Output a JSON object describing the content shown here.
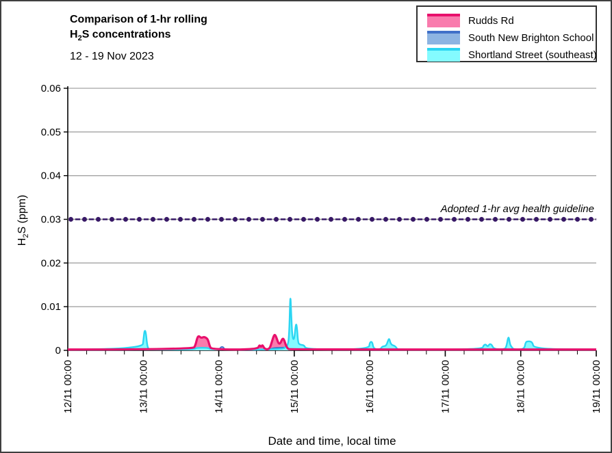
{
  "title": {
    "line1": "Comparison of 1-hr rolling",
    "line2_h": "H",
    "line2_sub": "2",
    "line2_rest": "S concentrations",
    "subtitle": "12 - 19 Nov 2023"
  },
  "legend": {
    "items": [
      {
        "label": "Rudds Rd"
      },
      {
        "label": "South New Brighton School"
      },
      {
        "label": "Shortland Street (southeast)"
      }
    ]
  },
  "axes": {
    "y_title_h": "H",
    "y_title_sub": "2",
    "y_title_rest": "S (ppm)",
    "x_title": "Date and time, local time"
  },
  "annotation": {
    "text": "Adopted 1-hr avg health guideline"
  },
  "colors": {
    "gridline": "#a3a3a3",
    "axis": "#000000",
    "guideline_purple": "#371866",
    "guideline_gray": "#909090"
  },
  "chart_data": {
    "type": "area",
    "title": "Comparison of 1-hr rolling H2S concentrations",
    "subtitle": "12 - 19 Nov 2023",
    "xlabel": "Date and time, local time",
    "ylabel": "H2S (ppm)",
    "x_unit": "hours since 12/11/2023 00:00 local time",
    "xlim": [
      0,
      168
    ],
    "ylim": [
      0,
      0.06
    ],
    "grid": "horizontal",
    "legend_position": "top-right",
    "y_ticks": [
      {
        "value": 0,
        "label": "0"
      },
      {
        "value": 0.01,
        "label": "0.01"
      },
      {
        "value": 0.02,
        "label": "0.02"
      },
      {
        "value": 0.03,
        "label": "0.03"
      },
      {
        "value": 0.04,
        "label": "0.04"
      },
      {
        "value": 0.05,
        "label": "0.05"
      },
      {
        "value": 0.06,
        "label": "0.06"
      }
    ],
    "x_ticks": [
      {
        "hour": 0,
        "label": "12/11 00:00"
      },
      {
        "hour": 24,
        "label": "13/11 00:00"
      },
      {
        "hour": 48,
        "label": "14/11 00:00"
      },
      {
        "hour": 72,
        "label": "15/11 00:00"
      },
      {
        "hour": 96,
        "label": "16/11 00:00"
      },
      {
        "hour": 120,
        "label": "17/11 00:00"
      },
      {
        "hour": 144,
        "label": "18/11 00:00"
      },
      {
        "hour": 168,
        "label": "19/11 00:00"
      }
    ],
    "x_minor_tick_hours": 6,
    "guideline": {
      "value": 0.03,
      "label": "Adopted 1-hr avg health guideline",
      "style": "dashed-with-dot-markers"
    },
    "series": [
      {
        "name": "Rudds Rd",
        "fill": "#f97bad",
        "line": "#e8106c",
        "line_width": 3.2,
        "points": [
          [
            0,
            0.0002
          ],
          [
            39.8,
            0.0002
          ],
          [
            40.6,
            0.0012
          ],
          [
            41.2,
            0.003
          ],
          [
            41.7,
            0.0033
          ],
          [
            42.4,
            0.0028
          ],
          [
            43.2,
            0.0031
          ],
          [
            44.0,
            0.0029
          ],
          [
            44.6,
            0.0024
          ],
          [
            45.1,
            0.001
          ],
          [
            45.7,
            0.0002
          ],
          [
            60.4,
            0.0002
          ],
          [
            60.9,
            0.0013
          ],
          [
            61.4,
            0.0007
          ],
          [
            61.9,
            0.0013
          ],
          [
            62.4,
            0.0005
          ],
          [
            63.2,
            0.0002
          ],
          [
            64.2,
            0.0004
          ],
          [
            64.9,
            0.002
          ],
          [
            65.5,
            0.0034
          ],
          [
            65.9,
            0.0036
          ],
          [
            66.4,
            0.0028
          ],
          [
            67.0,
            0.0015
          ],
          [
            67.6,
            0.0016
          ],
          [
            68.2,
            0.0027
          ],
          [
            68.7,
            0.0026
          ],
          [
            69.3,
            0.0012
          ],
          [
            69.9,
            0.0004
          ],
          [
            70.6,
            0.0002
          ],
          [
            168,
            0.0002
          ]
        ]
      },
      {
        "name": "South New Brighton School",
        "fill": "#8db4e2",
        "line": "#4070c8",
        "line_width": 1.8,
        "points": [
          [
            0,
            0.0001
          ],
          [
            48.2,
            0.0001
          ],
          [
            48.6,
            0.0008
          ],
          [
            49.5,
            0.0008
          ],
          [
            49.9,
            0.0001
          ],
          [
            64.3,
            0.0001
          ],
          [
            64.9,
            0.0006
          ],
          [
            70.8,
            0.0007
          ],
          [
            71.6,
            0.0003
          ],
          [
            72.3,
            0.0001
          ],
          [
            168,
            0.0001
          ]
        ]
      },
      {
        "name": "Shortland Street (southeast)",
        "fill": "#84fbff",
        "line": "#2bd5f2",
        "line_width": 2.4,
        "points": [
          [
            0,
            0.0002
          ],
          [
            23.7,
            0.0002
          ],
          [
            24.1,
            0.0028
          ],
          [
            24.4,
            0.0046
          ],
          [
            24.8,
            0.0043
          ],
          [
            25.2,
            0.0014
          ],
          [
            25.6,
            0.0003
          ],
          [
            26.4,
            0.0002
          ],
          [
            40.2,
            0.0002
          ],
          [
            40.8,
            0.0006
          ],
          [
            44.7,
            0.0006
          ],
          [
            45.3,
            0.0002
          ],
          [
            68.4,
            0.0002
          ],
          [
            69.2,
            0.0008
          ],
          [
            70.1,
            0.0013
          ],
          [
            70.45,
            0.005
          ],
          [
            70.75,
            0.0135
          ],
          [
            71.05,
            0.008
          ],
          [
            71.4,
            0.0028
          ],
          [
            72.0,
            0.0024
          ],
          [
            72.5,
            0.0062
          ],
          [
            72.85,
            0.0055
          ],
          [
            73.2,
            0.0018
          ],
          [
            73.7,
            0.0013
          ],
          [
            75.2,
            0.0012
          ],
          [
            75.7,
            0.0002
          ],
          [
            95.7,
            0.0002
          ],
          [
            96.0,
            0.0019
          ],
          [
            96.8,
            0.002
          ],
          [
            97.2,
            0.0003
          ],
          [
            99.4,
            0.0002
          ],
          [
            99.9,
            0.0009
          ],
          [
            101.2,
            0.001
          ],
          [
            101.8,
            0.0022
          ],
          [
            102.2,
            0.0028
          ],
          [
            102.7,
            0.0013
          ],
          [
            104.1,
            0.001
          ],
          [
            104.7,
            0.0003
          ],
          [
            105.4,
            0.0002
          ],
          [
            131.7,
            0.0002
          ],
          [
            132.2,
            0.0012
          ],
          [
            132.9,
            0.0014
          ],
          [
            133.5,
            0.0008
          ],
          [
            134.1,
            0.0015
          ],
          [
            134.8,
            0.0013
          ],
          [
            135.4,
            0.0003
          ],
          [
            138.9,
            0.0002
          ],
          [
            139.5,
            0.001
          ],
          [
            140.1,
            0.0035
          ],
          [
            140.6,
            0.0013
          ],
          [
            141.1,
            0.0008
          ],
          [
            141.7,
            0.0002
          ],
          [
            145.1,
            0.0002
          ],
          [
            145.5,
            0.0018
          ],
          [
            146.1,
            0.0021
          ],
          [
            147.7,
            0.002
          ],
          [
            148.2,
            0.0003
          ],
          [
            168,
            0.0002
          ]
        ]
      }
    ]
  }
}
